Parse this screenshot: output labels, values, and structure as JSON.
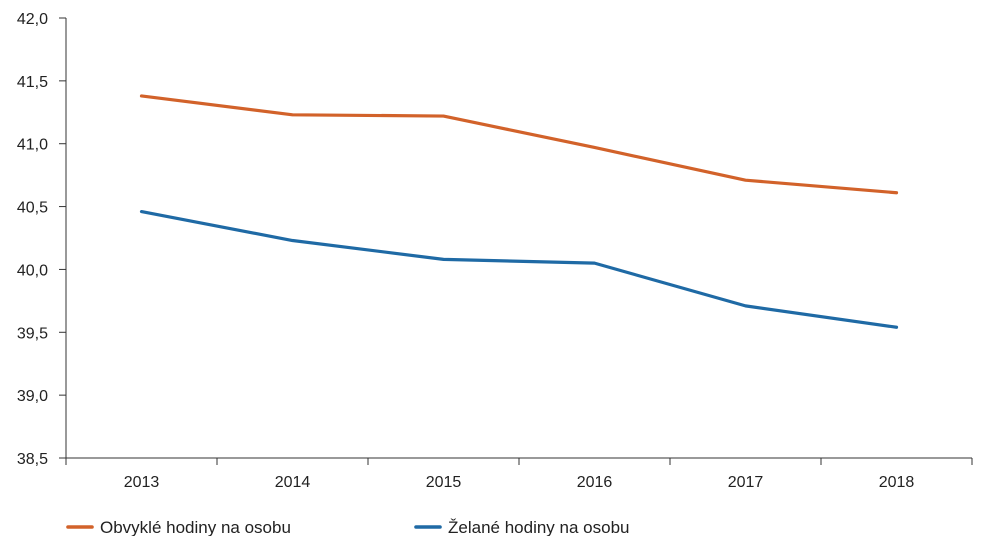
{
  "chart_data": {
    "type": "line",
    "x": [
      "2013",
      "2014",
      "2015",
      "2016",
      "2017",
      "2018"
    ],
    "ylim": [
      38.5,
      42.0
    ],
    "yticks": [
      "38,5",
      "39,0",
      "39,5",
      "40,0",
      "40,5",
      "41,0",
      "41,5",
      "42,0"
    ],
    "yticks_values": [
      38.5,
      39.0,
      39.5,
      40.0,
      40.5,
      41.0,
      41.5,
      42.0
    ],
    "grid": false,
    "legend_position": "bottom-left",
    "series": [
      {
        "name": "Obvyklé hodiny na osobu",
        "color": "#d2622a",
        "values": [
          41.38,
          41.23,
          41.22,
          40.97,
          40.71,
          40.61
        ]
      },
      {
        "name": "Želané hodiny na osobu",
        "color": "#1f6aa5",
        "values": [
          40.46,
          40.23,
          40.08,
          40.05,
          39.71,
          39.54
        ]
      }
    ]
  }
}
